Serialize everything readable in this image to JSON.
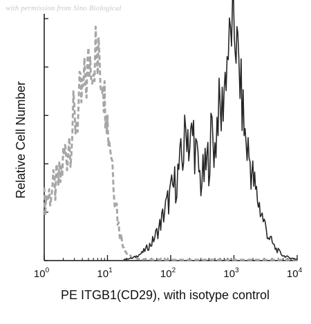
{
  "watermark": "with permission from Sino Biological",
  "chart_data": {
    "type": "line",
    "title": "",
    "xlabel": "PE ITGB1(CD29), with isotype control",
    "ylabel": "Relative Cell Number",
    "x_scale": "log",
    "xlim": [
      1,
      10000
    ],
    "ylim": [
      0,
      100
    ],
    "x_ticks": [
      {
        "base": "10",
        "exp": "0",
        "value": 1
      },
      {
        "base": "10",
        "exp": "1",
        "value": 10
      },
      {
        "base": "10",
        "exp": "2",
        "value": 100
      },
      {
        "base": "10",
        "exp": "3",
        "value": 1000
      },
      {
        "base": "10",
        "exp": "4",
        "value": 10000
      }
    ],
    "y_ticks_labeled": false,
    "grid": false,
    "series": [
      {
        "style": "dashed",
        "color": "#a6a6a6",
        "x": [
          1.0,
          1.2,
          1.5,
          1.8,
          2.0,
          2.3,
          2.6,
          3.0,
          3.5,
          4.0,
          4.5,
          5.0,
          5.5,
          6.0,
          6.5,
          7.0,
          7.5,
          8.0,
          8.5,
          9.0,
          9.5,
          10.0,
          11.0,
          12.0,
          13.0,
          14.0,
          15.0,
          17.0,
          20.0,
          25.0,
          40.0,
          100.0,
          1000.0,
          10000.0
        ],
        "y": [
          24,
          27,
          30,
          33,
          40,
          46,
          52,
          56,
          62,
          66,
          72,
          78,
          84,
          81,
          86,
          78,
          82,
          74,
          80,
          64,
          70,
          56,
          50,
          40,
          30,
          22,
          14,
          8,
          3,
          1,
          0.5,
          0.3,
          0.3,
          0.3
        ]
      },
      {
        "style": "solid",
        "color": "#262626",
        "x": [
          18,
          25,
          35,
          50,
          65,
          80,
          100,
          120,
          140,
          160,
          180,
          200,
          230,
          260,
          300,
          350,
          400,
          450,
          500,
          560,
          630,
          700,
          780,
          850,
          950,
          1050,
          1150,
          1300,
          1500,
          1800,
          2200,
          2800,
          3500,
          4500,
          6000,
          8000,
          10000
        ],
        "y": [
          0.5,
          1,
          3,
          7,
          13,
          20,
          27,
          32,
          38,
          44,
          56,
          46,
          52,
          40,
          32,
          36,
          42,
          52,
          45,
          62,
          58,
          70,
          82,
          88,
          96,
          90,
          84,
          68,
          50,
          40,
          28,
          18,
          10,
          5,
          2,
          1,
          0.5
        ]
      }
    ]
  }
}
